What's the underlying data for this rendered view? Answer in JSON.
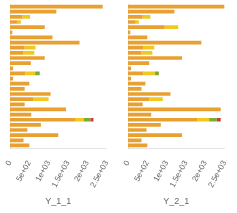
{
  "chart_data": [
    {
      "type": "bar",
      "orientation": "horizontal",
      "stacked": true,
      "grid": false,
      "tick_labels": "x",
      "xlabel": "Y_1_1",
      "categories": [
        null,
        null,
        null,
        null,
        null,
        null,
        null,
        null,
        null,
        null,
        null,
        null,
        null,
        null,
        null,
        null,
        null,
        null,
        null,
        null,
        null,
        null,
        null,
        null,
        null,
        null,
        null,
        null
      ],
      "series": [
        {
          "color": "#E8A030",
          "values": [
            2400,
            1200,
            320,
            180,
            900,
            60,
            1100,
            1800,
            380,
            350,
            900,
            540,
            80,
            400,
            80,
            500,
            380,
            1050,
            600,
            380,
            1450,
            550,
            1700,
            800,
            450,
            1250,
            350,
            500
          ]
        },
        {
          "color": "#F0C820",
          "values": [
            0,
            0,
            200,
            100,
            0,
            0,
            0,
            0,
            280,
            280,
            0,
            0,
            0,
            250,
            0,
            0,
            0,
            0,
            400,
            0,
            0,
            0,
            200,
            0,
            0,
            0,
            0,
            0
          ]
        },
        {
          "color": "#7BAA38",
          "values": [
            0,
            0,
            0,
            0,
            0,
            0,
            0,
            0,
            0,
            0,
            0,
            0,
            0,
            120,
            0,
            0,
            0,
            0,
            0,
            0,
            0,
            0,
            180,
            0,
            0,
            0,
            0,
            0
          ]
        },
        {
          "color": "#C84030",
          "values": [
            0,
            0,
            0,
            0,
            0,
            0,
            0,
            0,
            0,
            0,
            0,
            0,
            0,
            0,
            0,
            0,
            0,
            0,
            0,
            0,
            0,
            0,
            80,
            0,
            0,
            0,
            0,
            0
          ]
        }
      ],
      "xlim": [
        0,
        2500
      ],
      "xticks": [
        0,
        {
          "value": 500,
          "label": "5e+02"
        },
        {
          "value": 1000,
          "label": "1e+03"
        },
        {
          "value": 1500,
          "label": "1.5e+03"
        },
        {
          "value": 2000,
          "label": "2e+03"
        },
        {
          "value": 2500,
          "label": "2.5e+03"
        }
      ]
    },
    {
      "type": "bar",
      "orientation": "horizontal",
      "stacked": true,
      "grid": false,
      "tick_labels": "x",
      "xlabel": "Y_2_1",
      "categories": [
        null,
        null,
        null,
        null,
        null,
        null,
        null,
        null,
        null,
        null,
        null,
        null,
        null,
        null,
        null,
        null,
        null,
        null,
        null,
        null,
        null,
        null,
        null,
        null,
        null,
        null,
        null,
        null
      ],
      "series": [
        {
          "color": "#E8A030",
          "values": [
            2500,
            1200,
            380,
            200,
            950,
            60,
            500,
            1900,
            400,
            350,
            1400,
            550,
            80,
            400,
            80,
            450,
            350,
            1100,
            550,
            380,
            2400,
            600,
            1800,
            850,
            480,
            1400,
            350,
            500
          ]
        },
        {
          "color": "#F0C820",
          "values": [
            0,
            0,
            200,
            80,
            350,
            0,
            0,
            0,
            280,
            280,
            0,
            0,
            0,
            300,
            0,
            0,
            0,
            0,
            350,
            0,
            0,
            0,
            300,
            0,
            0,
            0,
            0,
            0
          ]
        },
        {
          "color": "#7BAA38",
          "values": [
            0,
            0,
            0,
            0,
            0,
            0,
            0,
            0,
            0,
            0,
            0,
            0,
            0,
            100,
            0,
            0,
            0,
            0,
            0,
            0,
            0,
            0,
            200,
            0,
            0,
            0,
            0,
            0
          ]
        },
        {
          "color": "#C84030",
          "values": [
            0,
            0,
            0,
            0,
            0,
            0,
            0,
            0,
            0,
            0,
            0,
            0,
            0,
            0,
            0,
            0,
            0,
            0,
            0,
            0,
            0,
            0,
            100,
            0,
            0,
            0,
            0,
            0
          ]
        }
      ],
      "xlim": [
        0,
        2500
      ],
      "xticks": [
        0,
        {
          "value": 500,
          "label": "5e+02"
        },
        {
          "value": 1000,
          "label": "1e+03"
        },
        {
          "value": 1500,
          "label": "1.5e+03"
        },
        {
          "value": 2000,
          "label": "2e+03"
        },
        {
          "value": 2500,
          "label": "2.5e+03"
        }
      ]
    }
  ]
}
